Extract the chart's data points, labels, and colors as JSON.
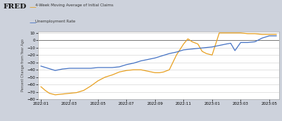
{
  "legend_labels": [
    "4-Week Moving Average of Initial Claims",
    "Unemployment Rate"
  ],
  "legend_colors": [
    "#E8A020",
    "#4472C4"
  ],
  "ylabel": "Percent Change from Year Ago",
  "fig_bg": "#CDD2DC",
  "plot_bg": "#FFFFFF",
  "header_bg": "#CDD2DC",
  "ylim": [
    -80,
    12
  ],
  "yticks": [
    -80,
    -70,
    -60,
    -50,
    -40,
    -30,
    -20,
    -10,
    0,
    10
  ],
  "x_tick_labels": [
    "2022:01",
    "2022:03",
    "2022:05",
    "2022:07",
    "2022:09",
    "2022:11",
    "2023:01",
    "2023:03",
    "2023:05"
  ],
  "orange_x": [
    0,
    0.3,
    0.6,
    1,
    1.5,
    2,
    2.5,
    3,
    3.5,
    4,
    4.5,
    5,
    5.5,
    6,
    6.5,
    7,
    7.5,
    8,
    8.3,
    8.6,
    9,
    9.5,
    10,
    10.3,
    10.6,
    11,
    11.3,
    11.6,
    12,
    12.5,
    13,
    13.3,
    13.6,
    14,
    14.5,
    15,
    15.5,
    16,
    16.5
  ],
  "orange_y": [
    -63,
    -68,
    -72,
    -74,
    -73,
    -72,
    -71,
    -68,
    -62,
    -55,
    -50,
    -47,
    -43,
    -41,
    -40,
    -40,
    -42,
    -44,
    -44,
    -43,
    -40,
    -20,
    -5,
    2,
    -2,
    -5,
    -15,
    -18,
    -20,
    10,
    10,
    10,
    10,
    10,
    9,
    9,
    8,
    8,
    8
  ],
  "blue_x": [
    0,
    0.5,
    1,
    1.5,
    2,
    2.5,
    3,
    3.5,
    4,
    4.5,
    5,
    5.5,
    6,
    6.5,
    7,
    7.5,
    8,
    8.5,
    9,
    9.5,
    10,
    10.5,
    11,
    11.5,
    12,
    12.5,
    13,
    13.3,
    13.6,
    14,
    14.5,
    15,
    15.5,
    16,
    16.5
  ],
  "blue_y": [
    -35,
    -38,
    -41,
    -39,
    -38,
    -38,
    -38,
    -38,
    -37,
    -37,
    -37,
    -36,
    -33,
    -31,
    -28,
    -26,
    -24,
    -21,
    -18,
    -16,
    -13,
    -12,
    -11,
    -10,
    -9,
    -7,
    -5,
    -4,
    -14,
    -3,
    -3,
    -2,
    3,
    6,
    6
  ]
}
